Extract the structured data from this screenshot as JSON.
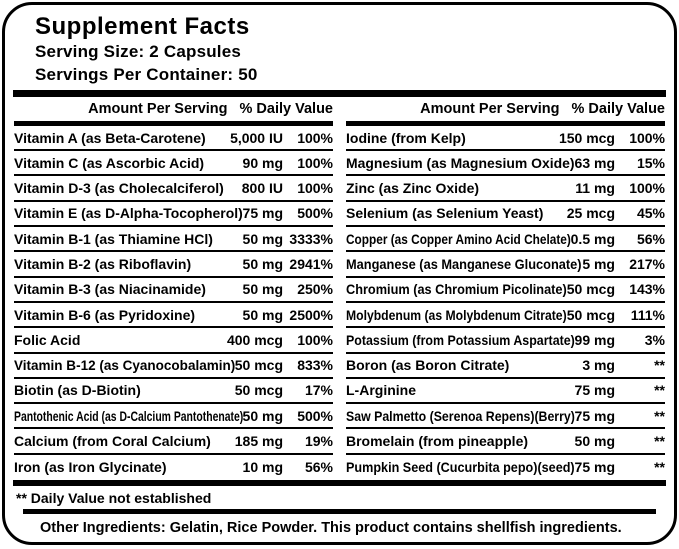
{
  "header": {
    "title": "Supplement Facts",
    "serving_size": "Serving Size: 2 Capsules",
    "servings_per_container": "Servings Per Container: 50"
  },
  "columns": {
    "amount_header": "Amount Per Serving",
    "dv_header": "% Daily Value"
  },
  "left_rows": [
    {
      "name": "Vitamin A (as Beta-Carotene)",
      "amount": "5,000 IU",
      "dv": "100%"
    },
    {
      "name": "Vitamin C (as Ascorbic Acid)",
      "amount": "90 mg",
      "dv": "100%"
    },
    {
      "name": "Vitamin D-3 (as Cholecalciferol)",
      "amount": "800 IU",
      "dv": "100%"
    },
    {
      "name": "Vitamin E (as D-Alpha-Tocopherol)",
      "amount": "75 mg",
      "dv": "500%"
    },
    {
      "name": "Vitamin B-1 (as Thiamine HCl)",
      "amount": "50 mg",
      "dv": "3333%"
    },
    {
      "name": "Vitamin B-2 (as Riboflavin)",
      "amount": "50 mg",
      "dv": "2941%"
    },
    {
      "name": "Vitamin B-3 (as Niacinamide)",
      "amount": "50 mg",
      "dv": "250%"
    },
    {
      "name": "Vitamin B-6 (as Pyridoxine)",
      "amount": "50 mg",
      "dv": "2500%"
    },
    {
      "name": "Folic Acid",
      "amount": "400 mcg",
      "dv": "100%"
    },
    {
      "name": "Vitamin B-12 (as Cyanocobalamin)",
      "amount": "50 mcg",
      "dv": "833%"
    },
    {
      "name": "Biotin (as D-Biotin)",
      "amount": "50 mcg",
      "dv": "17%"
    },
    {
      "name": "Pantothenic Acid (as D-Calcium Pantothenate)",
      "amount": "50 mg",
      "dv": "500%"
    },
    {
      "name": "Calcium (from Coral Calcium)",
      "amount": "185 mg",
      "dv": "19%"
    },
    {
      "name": "Iron (as Iron Glycinate)",
      "amount": "10 mg",
      "dv": "56%"
    }
  ],
  "right_rows": [
    {
      "name": "Iodine (from Kelp)",
      "amount": "150 mcg",
      "dv": "100%"
    },
    {
      "name": "Magnesium (as Magnesium Oxide)",
      "amount": "63 mg",
      "dv": "15%"
    },
    {
      "name": "Zinc (as Zinc Oxide)",
      "amount": "11 mg",
      "dv": "100%"
    },
    {
      "name": "Selenium (as Selenium Yeast)",
      "amount": "25 mcg",
      "dv": "45%"
    },
    {
      "name": "Copper (as Copper Amino Acid Chelate)",
      "amount": "0.5 mg",
      "dv": "56%"
    },
    {
      "name": "Manganese (as Manganese Gluconate)",
      "amount": "5 mg",
      "dv": "217%"
    },
    {
      "name": "Chromium (as Chromium Picolinate)",
      "amount": "50 mcg",
      "dv": "143%"
    },
    {
      "name": "Molybdenum (as Molybdenum Citrate)",
      "amount": "50 mcg",
      "dv": "111%"
    },
    {
      "name": "Potassium (from Potassium Aspartate)",
      "amount": "99 mg",
      "dv": "3%"
    },
    {
      "name": "Boron (as Boron Citrate)",
      "amount": "3 mg",
      "dv": "**"
    },
    {
      "name": "L-Arginine",
      "amount": "75 mg",
      "dv": "**"
    },
    {
      "name": "Saw Palmetto (Serenoa Repens)(Berry)",
      "amount": "75 mg",
      "dv": "**"
    },
    {
      "name": "Bromelain (from pineapple)",
      "amount": "50 mg",
      "dv": "**"
    },
    {
      "name": "Pumpkin Seed (Cucurbita pepo)(seed)",
      "amount": "75 mg",
      "dv": "**"
    }
  ],
  "footer": {
    "dv_note": "** Daily Value not established",
    "other_ingredients": "Other Ingredients: Gelatin, Rice Powder. This product contains shellfish ingredients."
  },
  "colors": {
    "ink": "#000000",
    "background": "#ffffff"
  }
}
